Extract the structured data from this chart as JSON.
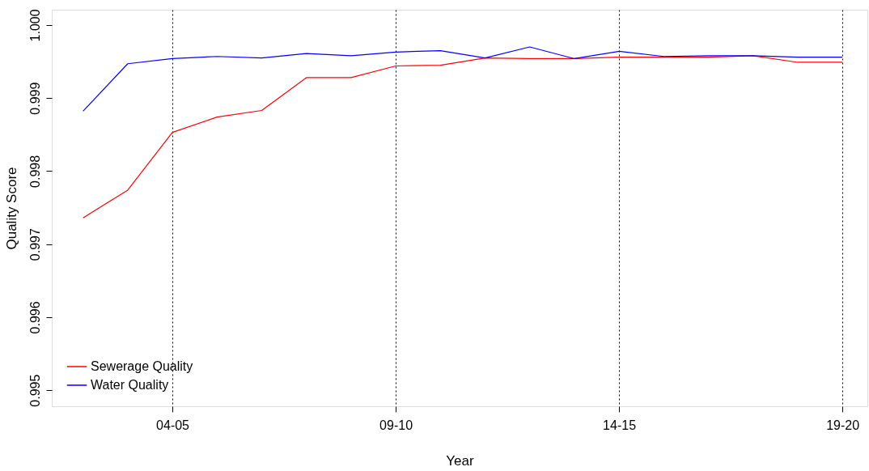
{
  "chart_data": {
    "type": "line",
    "xlabel": "Year",
    "ylabel": "Quality Score",
    "categories": [
      null,
      null,
      "04-05",
      null,
      null,
      null,
      null,
      "09-10",
      null,
      null,
      null,
      null,
      "14-15",
      null,
      null,
      null,
      null,
      "19-20"
    ],
    "series": [
      {
        "name": "Sewerage Quality",
        "color": "#ff0000",
        "values": [
          0.99736,
          0.99774,
          0.99853,
          0.99874,
          0.99883,
          0.99928,
          0.99928,
          0.99944,
          0.99945,
          0.99955,
          0.99954,
          0.99954,
          0.99956,
          0.99956,
          0.99956,
          0.99958,
          0.99949,
          0.99949
        ]
      },
      {
        "name": "Water Quality",
        "color": "#0000ff",
        "values": [
          0.99882,
          0.99947,
          0.99954,
          0.99957,
          0.99955,
          0.99961,
          0.99958,
          0.99963,
          0.99965,
          0.99955,
          0.9997,
          0.99954,
          0.99964,
          0.99957,
          0.99958,
          0.99958,
          0.99956,
          0.99956
        ]
      }
    ],
    "ylim": [
      0.99478,
      1.00021
    ],
    "yticks": [
      0.995,
      0.996,
      0.997,
      0.998,
      0.999,
      {
        "value": 1.0,
        "label": "1.000"
      }
    ],
    "grid": "x",
    "legend": "bottom left",
    "marker": "none",
    "line_style": "solid"
  }
}
